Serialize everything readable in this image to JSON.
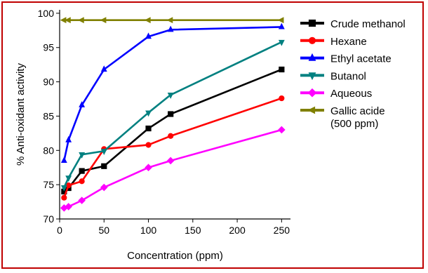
{
  "chart_data": {
    "type": "line",
    "title": "",
    "xlabel": "Concentration (ppm)",
    "ylabel": "% Anti-oxidant activity",
    "xlim": [
      0,
      260
    ],
    "ylim": [
      70,
      100.5
    ],
    "xticks": [
      0,
      50,
      100,
      150,
      200,
      250
    ],
    "yticks": [
      70,
      75,
      80,
      85,
      90,
      95,
      100
    ],
    "grid": false,
    "legend_position": "right",
    "series": [
      {
        "name": "Crude methanol",
        "color": "#000000",
        "marker": "square",
        "x": [
          5,
          10,
          25,
          50,
          100,
          125,
          250
        ],
        "y": [
          74.0,
          74.5,
          77.0,
          77.7,
          83.2,
          85.3,
          91.8
        ]
      },
      {
        "name": "Hexane",
        "color": "#ff0000",
        "marker": "circle",
        "x": [
          5,
          10,
          25,
          50,
          100,
          125,
          250
        ],
        "y": [
          73.1,
          74.9,
          75.5,
          80.2,
          80.8,
          82.1,
          87.6
        ]
      },
      {
        "name": "Ethyl acetate",
        "color": "#0000ff",
        "marker": "triangle-up",
        "x": [
          5,
          10,
          25,
          50,
          100,
          125,
          250
        ],
        "y": [
          78.5,
          81.5,
          86.6,
          91.8,
          96.6,
          97.6,
          98.0
        ]
      },
      {
        "name": "Butanol",
        "color": "#008080",
        "marker": "triangle-down",
        "x": [
          5,
          10,
          25,
          50,
          100,
          125,
          250
        ],
        "y": [
          74.6,
          76.0,
          79.4,
          79.9,
          85.5,
          88.1,
          95.8
        ]
      },
      {
        "name": "Aqueous",
        "color": "#ff00ff",
        "marker": "diamond",
        "x": [
          5,
          10,
          25,
          50,
          100,
          125,
          250
        ],
        "y": [
          71.6,
          71.8,
          72.7,
          74.6,
          77.5,
          78.5,
          83.0
        ]
      },
      {
        "name": "Gallic acide (500 ppm)",
        "name_lines": [
          "Gallic acide",
          "(500 ppm)"
        ],
        "color": "#808000",
        "marker": "triangle-left",
        "x": [
          5,
          10,
          25,
          50,
          100,
          125,
          250
        ],
        "y": [
          99.0,
          99.0,
          99.0,
          99.0,
          99.0,
          99.0,
          99.0
        ]
      }
    ]
  }
}
